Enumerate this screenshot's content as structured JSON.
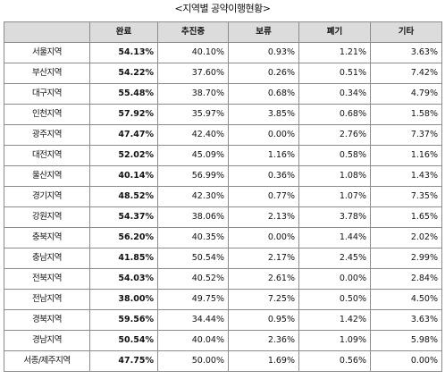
{
  "title": "<지역별 공약이행현황>",
  "columns": [
    "",
    "완료",
    "추진중",
    "보류",
    "폐기",
    "기타"
  ],
  "rows": [
    {
      "region": "서울지역",
      "values": [
        "54.13%",
        "40.10%",
        "0.93%",
        "1.21%",
        "3.63%"
      ]
    },
    {
      "region": "부산지역",
      "values": [
        "54.22%",
        "37.60%",
        "0.26%",
        "0.51%",
        "7.42%"
      ]
    },
    {
      "region": "대구지역",
      "values": [
        "55.48%",
        "38.70%",
        "0.68%",
        "0.34%",
        "4.79%"
      ]
    },
    {
      "region": "인천지역",
      "values": [
        "57.92%",
        "35.97%",
        "3.85%",
        "0.68%",
        "1.58%"
      ]
    },
    {
      "region": "광주지역",
      "values": [
        "47.47%",
        "42.40%",
        "0.00%",
        "2.76%",
        "7.37%"
      ]
    },
    {
      "region": "대전지역",
      "values": [
        "52.02%",
        "45.09%",
        "1.16%",
        "0.58%",
        "1.16%"
      ]
    },
    {
      "region": "울산지역",
      "values": [
        "40.14%",
        "56.99%",
        "0.36%",
        "1.08%",
        "1.43%"
      ]
    },
    {
      "region": "경기지역",
      "values": [
        "48.52%",
        "42.30%",
        "0.77%",
        "1.07%",
        "7.35%"
      ]
    },
    {
      "region": "강원지역",
      "values": [
        "54.37%",
        "38.06%",
        "2.13%",
        "3.78%",
        "1.65%"
      ]
    },
    {
      "region": "충북지역",
      "values": [
        "56.20%",
        "40.35%",
        "0.00%",
        "1.44%",
        "2.02%"
      ]
    },
    {
      "region": "충남지역",
      "values": [
        "41.85%",
        "50.54%",
        "2.17%",
        "2.45%",
        "2.99%"
      ]
    },
    {
      "region": "전북지역",
      "values": [
        "54.03%",
        "40.52%",
        "2.61%",
        "0.00%",
        "2.84%"
      ]
    },
    {
      "region": "전남지역",
      "values": [
        "38.00%",
        "49.75%",
        "7.25%",
        "0.50%",
        "4.50%"
      ]
    },
    {
      "region": "경북지역",
      "values": [
        "59.56%",
        "34.44%",
        "0.95%",
        "1.42%",
        "3.63%"
      ]
    },
    {
      "region": "경남지역",
      "values": [
        "50.54%",
        "40.04%",
        "2.36%",
        "1.09%",
        "5.98%"
      ]
    },
    {
      "region": "서종/제주지역",
      "values": [
        "47.75%",
        "50.00%",
        "1.69%",
        "0.56%",
        "0.00%"
      ]
    }
  ]
}
